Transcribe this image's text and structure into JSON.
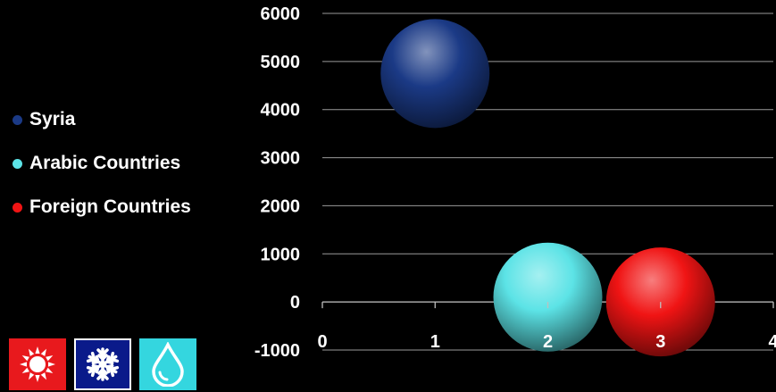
{
  "chart_data": {
    "type": "bubble",
    "title": "",
    "xlabel": "",
    "ylabel": "",
    "xlim": [
      0,
      4
    ],
    "ylim": [
      -1000,
      6000
    ],
    "x_ticks": [
      "0",
      "1",
      "2",
      "3",
      "4"
    ],
    "y_ticks": [
      "6000",
      "5000",
      "4000",
      "3000",
      "2000",
      "1000",
      "0",
      "-1000"
    ],
    "grid": true,
    "legend_position": "left",
    "series": [
      {
        "name": "Syria",
        "x": 1,
        "y": 4750,
        "color": "#1b3a86"
      },
      {
        "name": "Arabic Countries",
        "x": 2,
        "y": 100,
        "color": "#5ce3e6"
      },
      {
        "name": "Foreign Countries",
        "x": 3,
        "y": 0,
        "color": "#f01414"
      }
    ]
  },
  "legend": {
    "items": [
      {
        "label": "Syria",
        "color": "#1b3a86"
      },
      {
        "label": "Arabic Countries",
        "color": "#5ce3e6"
      },
      {
        "label": "Foreign Countries",
        "color": "#f01414"
      }
    ]
  },
  "icons": [
    {
      "name": "sun-icon",
      "color": "#e8191d"
    },
    {
      "name": "snowflake-icon",
      "color": "#0a1a8a"
    },
    {
      "name": "water-drop-icon",
      "color": "#34d6df"
    }
  ]
}
